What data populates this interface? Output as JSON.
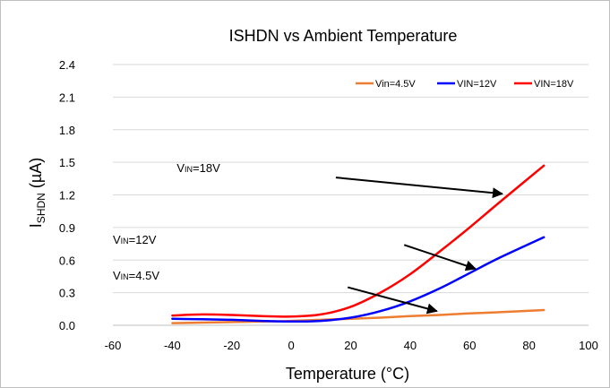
{
  "chart_data": {
    "type": "line",
    "title": "ISHDN vs Ambient Temperature",
    "xlabel": "Temperature (°C)",
    "ylabel_main": "I",
    "ylabel_sub": "SHDN",
    "ylabel_unit": " (µA)",
    "xlim": [
      -60,
      100
    ],
    "ylim": [
      0,
      2.4
    ],
    "xticks": [
      -60,
      -40,
      -20,
      0,
      20,
      40,
      60,
      80,
      100
    ],
    "yticks": [
      "0.0",
      "0.3",
      "0.6",
      "0.9",
      "1.2",
      "1.5",
      "1.8",
      "2.1",
      "2.4"
    ],
    "legend_position": "top-right",
    "grid": true,
    "series": [
      {
        "name": "Vin=4.5V",
        "color": "#ED7D31",
        "x": [
          -40,
          -30,
          -20,
          -10,
          0,
          10,
          20,
          30,
          40,
          50,
          60,
          70,
          85
        ],
        "y": [
          0.02,
          0.025,
          0.03,
          0.035,
          0.04,
          0.05,
          0.06,
          0.07,
          0.085,
          0.095,
          0.11,
          0.12,
          0.14
        ]
      },
      {
        "name": "VIN=12V",
        "color": "#0000FF",
        "x": [
          -40,
          -30,
          -20,
          -10,
          0,
          10,
          20,
          30,
          40,
          50,
          60,
          70,
          85
        ],
        "y": [
          0.06,
          0.055,
          0.05,
          0.04,
          0.035,
          0.04,
          0.07,
          0.13,
          0.22,
          0.34,
          0.48,
          0.62,
          0.81
        ]
      },
      {
        "name": "VIN=18V",
        "color": "#FF0000",
        "x": [
          -40,
          -30,
          -20,
          -10,
          0,
          10,
          20,
          30,
          40,
          50,
          60,
          70,
          85
        ],
        "y": [
          0.09,
          0.1,
          0.095,
          0.085,
          0.08,
          0.1,
          0.17,
          0.3,
          0.47,
          0.68,
          0.9,
          1.13,
          1.47
        ]
      }
    ],
    "annotations": [
      {
        "prefix": "V",
        "sub": "IN",
        "suffix": "=18V",
        "text_at": [
          -38.5,
          1.41
        ],
        "arrow_from": [
          15,
          1.36
        ],
        "arrow_to": [
          71,
          1.21
        ]
      },
      {
        "prefix": "V",
        "sub": "IN",
        "suffix": "=12V",
        "text_at": [
          -60,
          0.75
        ],
        "arrow_from": [
          38,
          0.74
        ],
        "arrow_to": [
          62,
          0.52
        ]
      },
      {
        "prefix": "V",
        "sub": "IN",
        "suffix": "=4.5V",
        "text_at": [
          -60,
          0.42
        ],
        "arrow_from": [
          19,
          0.35
        ],
        "arrow_to": [
          49,
          0.13
        ]
      }
    ]
  }
}
